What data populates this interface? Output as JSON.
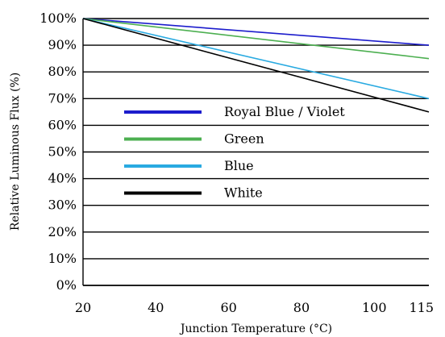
{
  "chart_data": {
    "type": "line",
    "xlabel": "Junction Temperature (°C)",
    "ylabel": "Relative Luminous Flux (%)",
    "xlim": [
      20,
      115
    ],
    "ylim": [
      0,
      100
    ],
    "x_ticks": [
      20,
      40,
      60,
      80,
      100,
      115
    ],
    "x_tick_labels": [
      "20",
      "40",
      "60",
      "80",
      "100",
      "115"
    ],
    "y_ticks": [
      0,
      10,
      20,
      30,
      40,
      50,
      60,
      70,
      80,
      90,
      100
    ],
    "y_tick_labels": [
      "0%",
      "10%",
      "20%",
      "30%",
      "40%",
      "50%",
      "60%",
      "70%",
      "80%",
      "90%",
      "100%"
    ],
    "grid": "horizontal",
    "legend_position": "inside",
    "series": [
      {
        "name": "Royal Blue / Violet",
        "color": "#1c1ccc",
        "x": [
          20,
          115
        ],
        "y": [
          100,
          90
        ]
      },
      {
        "name": "Green",
        "color": "#4caf50",
        "x": [
          20,
          115
        ],
        "y": [
          100,
          85
        ]
      },
      {
        "name": "Blue",
        "color": "#29aae1",
        "x": [
          20,
          115
        ],
        "y": [
          100,
          70
        ]
      },
      {
        "name": "White",
        "color": "#000000",
        "x": [
          20,
          115
        ],
        "y": [
          100,
          65
        ]
      }
    ]
  }
}
